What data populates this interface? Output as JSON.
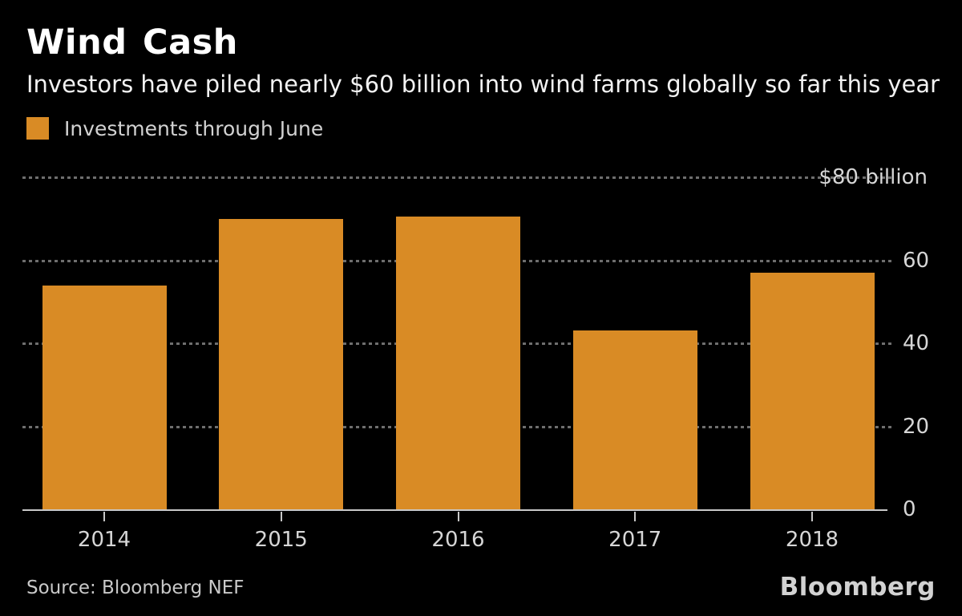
{
  "title": "Wind Cash",
  "subtitle": "Investors have piled nearly $60 billion into wind farms globally so far this year",
  "legend": {
    "label": "Investments through June"
  },
  "source": "Source: Bloomberg NEF",
  "brand": "Bloomberg",
  "colors": {
    "background": "#000000",
    "bar": "#d98b25",
    "gridline": "#6e6e6e",
    "axis": "#c8c8c8",
    "title_text": "#ffffff",
    "subtitle_text": "#f2f2f2",
    "label_text": "#d6d6d6"
  },
  "chart_data": {
    "type": "bar",
    "title": "Wind Cash",
    "subtitle": "Investors have piled nearly $60 billion into wind farms globally so far this year",
    "series_name": "Investments through June",
    "categories": [
      "2014",
      "2015",
      "2016",
      "2017",
      "2018"
    ],
    "values": [
      54,
      70,
      70.5,
      43,
      57
    ],
    "unit": "$ billion",
    "ylim": [
      0,
      80
    ],
    "yticks": [
      {
        "value": 80,
        "label": "$80 billion"
      },
      {
        "value": 60,
        "label": "60"
      },
      {
        "value": 40,
        "label": "40"
      },
      {
        "value": 20,
        "label": "20"
      },
      {
        "value": 0,
        "label": "0"
      }
    ],
    "grid": "dotted horizontal, labels on right",
    "legend_position": "top-left",
    "xlabel": "",
    "ylabel": ""
  }
}
